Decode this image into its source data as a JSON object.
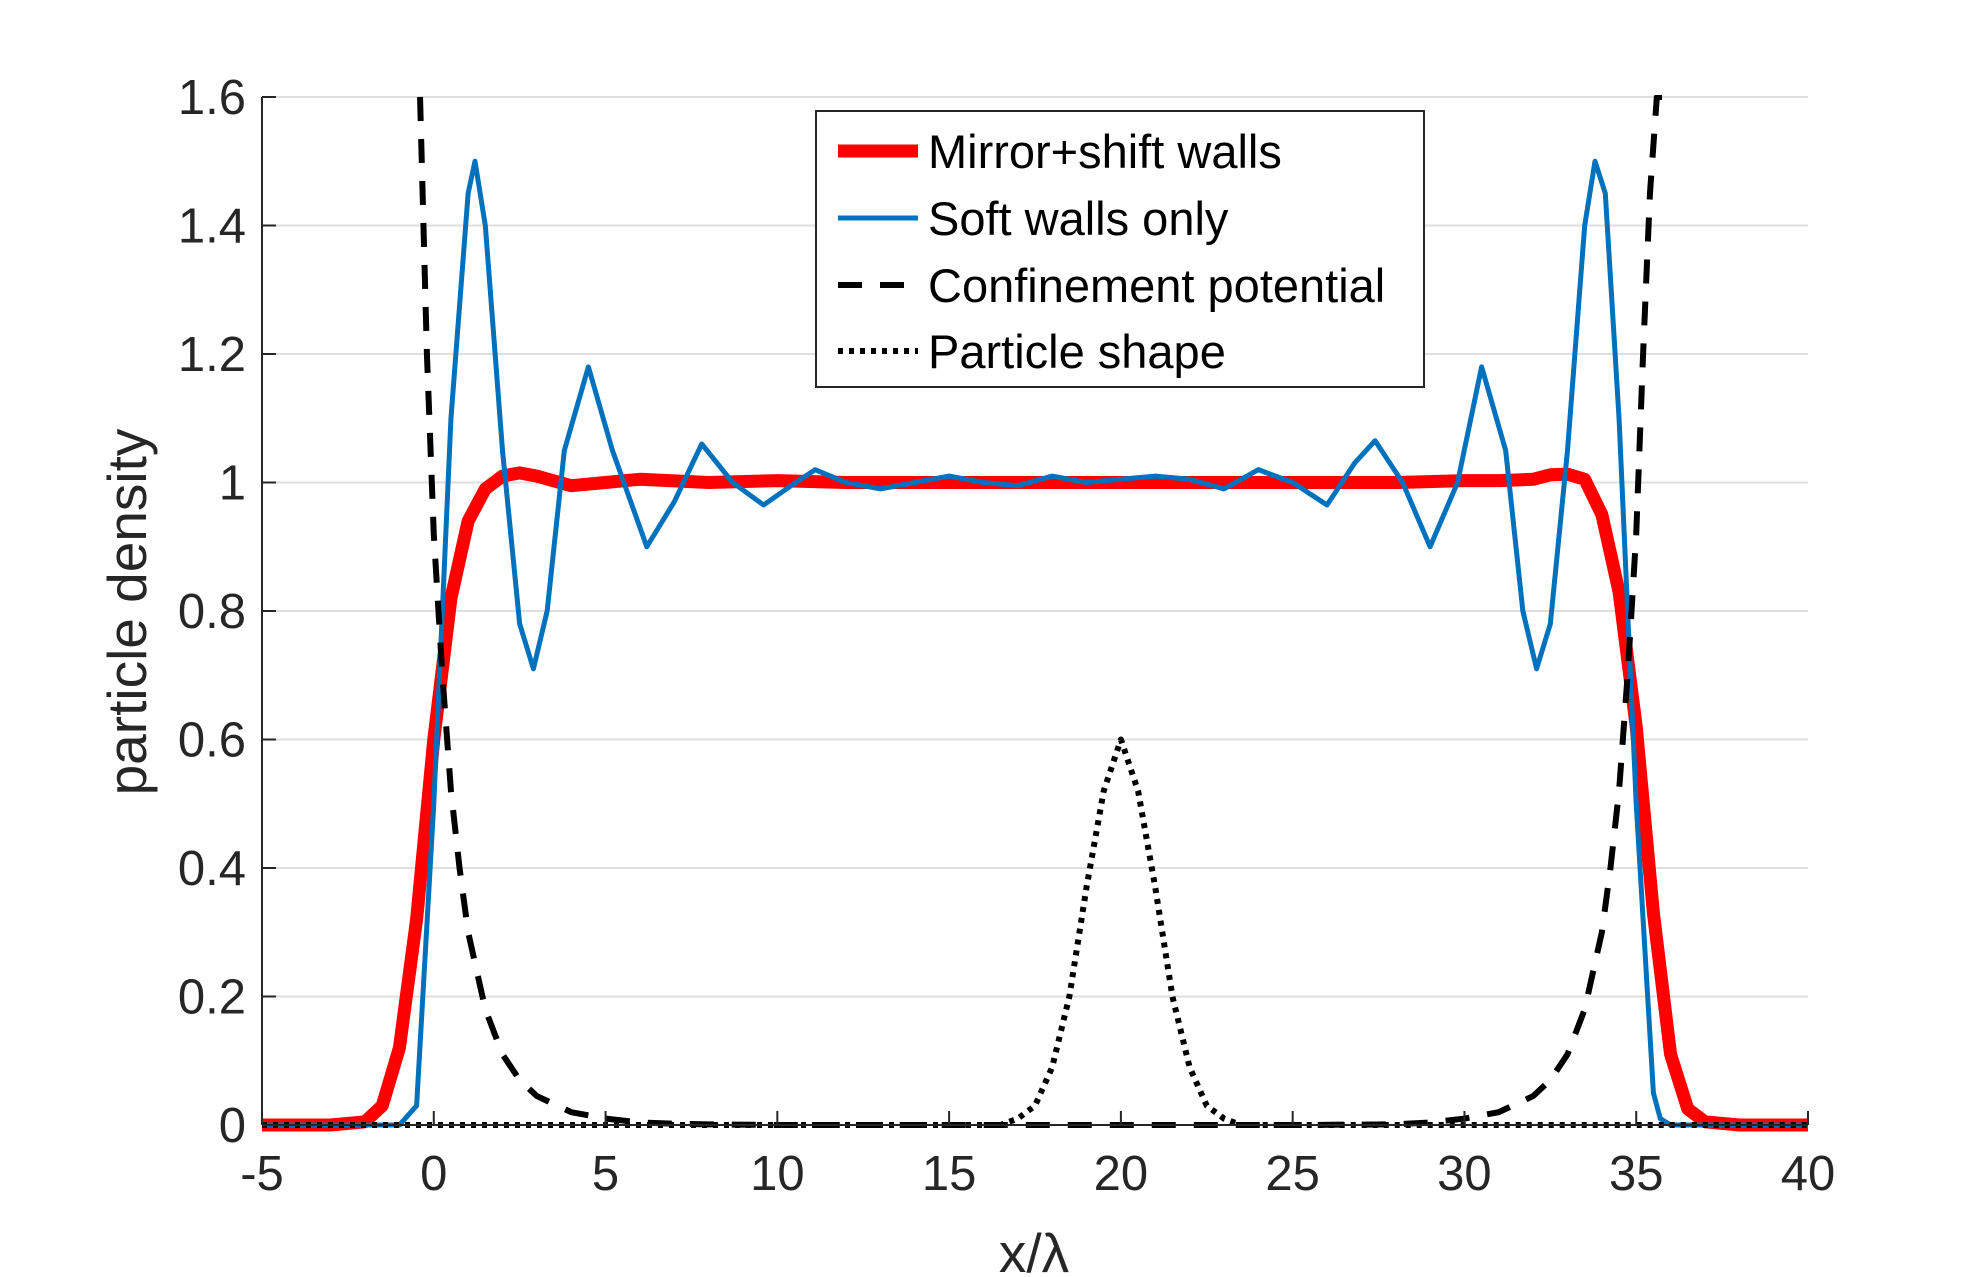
{
  "chart_data": {
    "type": "line",
    "title": "",
    "xlabel": "x/λ",
    "ylabel": "particle density",
    "xlim": [
      -5,
      40
    ],
    "ylim": [
      0,
      1.6
    ],
    "grid": "horizontal",
    "xticks": [
      "-5",
      "0",
      "5",
      "10",
      "15",
      "20",
      "25",
      "30",
      "35",
      "40"
    ],
    "yticks": [
      "0",
      "0.2",
      "0.4",
      "0.6",
      "0.8",
      "1",
      "1.2",
      "1.4",
      "1.6"
    ],
    "legend_position": "top-center",
    "series": [
      {
        "name": "Mirror+shift walls",
        "color": "#ff0000",
        "style": "solid-thick",
        "x": [
          -5,
          -3,
          -2,
          -1.5,
          -1,
          -0.5,
          0,
          0.5,
          1,
          1.5,
          2,
          2.5,
          3,
          4,
          5,
          6,
          8,
          10,
          12,
          15,
          18,
          20,
          22,
          25,
          28,
          30,
          31,
          32,
          32.5,
          33,
          33.5,
          34,
          34.5,
          35,
          35.5,
          36,
          36.5,
          37,
          38,
          40
        ],
        "y": [
          0,
          0,
          0.005,
          0.03,
          0.12,
          0.32,
          0.6,
          0.82,
          0.94,
          0.99,
          1.01,
          1.015,
          1.01,
          0.995,
          1.0,
          1.005,
          1.0,
          1.003,
          1.0,
          1.0,
          1.0,
          1.0,
          1.0,
          1.0,
          1.0,
          1.003,
          1.003,
          1.005,
          1.012,
          1.013,
          1.005,
          0.95,
          0.83,
          0.62,
          0.33,
          0.11,
          0.025,
          0.005,
          0,
          0
        ]
      },
      {
        "name": "Soft walls only",
        "color": "#0072bd",
        "style": "solid",
        "x": [
          -5,
          -1,
          -0.5,
          0,
          0.5,
          1,
          1.2,
          1.5,
          2,
          2.5,
          2.9,
          3.3,
          3.8,
          4.5,
          5.2,
          6.2,
          7,
          7.8,
          8.7,
          9.6,
          10.4,
          11.1,
          12,
          13,
          14,
          15,
          16,
          17,
          18,
          19,
          20,
          21,
          22,
          23,
          24,
          25,
          26,
          26.8,
          27.4,
          28.2,
          29,
          29.8,
          30.5,
          31.2,
          31.7,
          32.1,
          32.5,
          33,
          33.5,
          33.8,
          34.1,
          34.5,
          35,
          35.5,
          35.7,
          36,
          40
        ],
        "y": [
          0,
          0,
          0.03,
          0.5,
          1.1,
          1.45,
          1.5,
          1.4,
          1.05,
          0.78,
          0.71,
          0.8,
          1.05,
          1.18,
          1.05,
          0.9,
          0.97,
          1.06,
          1.0,
          0.965,
          0.995,
          1.02,
          1.0,
          0.99,
          1.0,
          1.01,
          1.0,
          0.995,
          1.01,
          1.0,
          1.005,
          1.01,
          1.005,
          0.99,
          1.02,
          1.0,
          0.965,
          1.03,
          1.065,
          1.0,
          0.9,
          1.0,
          1.18,
          1.05,
          0.8,
          0.71,
          0.78,
          1.05,
          1.4,
          1.5,
          1.45,
          1.1,
          0.5,
          0.05,
          0.01,
          0,
          0
        ]
      },
      {
        "name": "Confinement potential",
        "color": "#000000",
        "style": "dashed",
        "x": [
          -0.4,
          -0.2,
          0,
          0.25,
          0.5,
          0.75,
          1,
          1.5,
          2,
          2.5,
          3,
          4,
          5,
          6,
          7,
          8,
          10,
          15,
          20,
          25,
          28,
          29,
          30,
          31,
          32,
          32.5,
          33,
          33.5,
          34,
          34.25,
          34.5,
          34.75,
          35,
          35.2,
          35.4,
          35.6,
          35.8,
          36
        ],
        "y": [
          1.6,
          1.2,
          0.92,
          0.7,
          0.52,
          0.4,
          0.3,
          0.18,
          0.11,
          0.07,
          0.045,
          0.02,
          0.01,
          0.004,
          0.002,
          0.001,
          0,
          0,
          0,
          0,
          0.001,
          0.004,
          0.01,
          0.02,
          0.045,
          0.07,
          0.11,
          0.18,
          0.3,
          0.4,
          0.52,
          0.7,
          0.92,
          1.2,
          1.45,
          1.6,
          1.6,
          1.6
        ]
      },
      {
        "name": "Particle shape",
        "color": "#000000",
        "style": "dotted",
        "x": [
          -5,
          16.5,
          17,
          17.5,
          18,
          18.5,
          19,
          19.5,
          20,
          20.5,
          21,
          21.5,
          22,
          22.5,
          23,
          23.5,
          40
        ],
        "y": [
          0,
          0,
          0.01,
          0.03,
          0.09,
          0.2,
          0.37,
          0.52,
          0.6,
          0.52,
          0.37,
          0.2,
          0.09,
          0.03,
          0.01,
          0,
          0
        ]
      }
    ]
  }
}
